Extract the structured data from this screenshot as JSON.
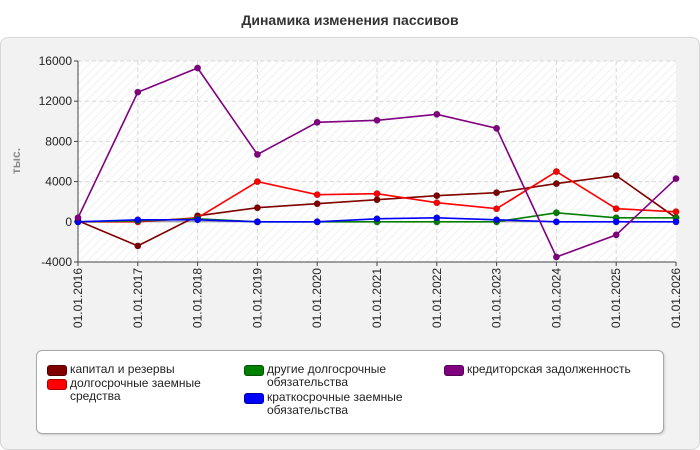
{
  "chart_data": {
    "type": "line",
    "title": "Динамика изменения пассивов",
    "ylabel": "тыс.",
    "xlabel": "",
    "categories": [
      "01.01.2016",
      "01.01.2017",
      "01.01.2018",
      "01.01.2019",
      "01.01.2020",
      "01.01.2021",
      "01.01.2022",
      "01.01.2023",
      "01.01.2024",
      "01.01.2025",
      "01.01.2026"
    ],
    "ylim": [
      -4000,
      16000
    ],
    "yticks": [
      "16000",
      "12000",
      "8000",
      "4000",
      "0",
      "-4000"
    ],
    "ytick_values": [
      16000,
      12000,
      8000,
      4000,
      0,
      -4000
    ],
    "grid": true,
    "legend_position": "bottom",
    "series": [
      {
        "name": "капитал и резервы",
        "color": "#800000",
        "values": [
          100,
          -2400,
          600,
          1400,
          1800,
          2200,
          2600,
          2900,
          3800,
          4600,
          400
        ]
      },
      {
        "name": "долгосрочные заемные\nсредства",
        "color": "#ff0000",
        "values": [
          0,
          0,
          400,
          4000,
          2700,
          2800,
          1900,
          1300,
          5000,
          1300,
          1000
        ]
      },
      {
        "name": "другие долгосрочные\nобязательства",
        "color": "#008000",
        "values": [
          0,
          100,
          300,
          0,
          0,
          0,
          0,
          0,
          900,
          400,
          400
        ]
      },
      {
        "name": "краткосрочные заемные\nобязательства",
        "color": "#0000ff",
        "values": [
          0,
          200,
          200,
          0,
          0,
          300,
          400,
          200,
          0,
          0,
          0
        ]
      },
      {
        "name": "кредиторская задолженность",
        "color": "#800080",
        "values": [
          400,
          12900,
          15300,
          6700,
          9900,
          10100,
          10700,
          9300,
          -3500,
          -1300,
          4300
        ]
      }
    ]
  }
}
